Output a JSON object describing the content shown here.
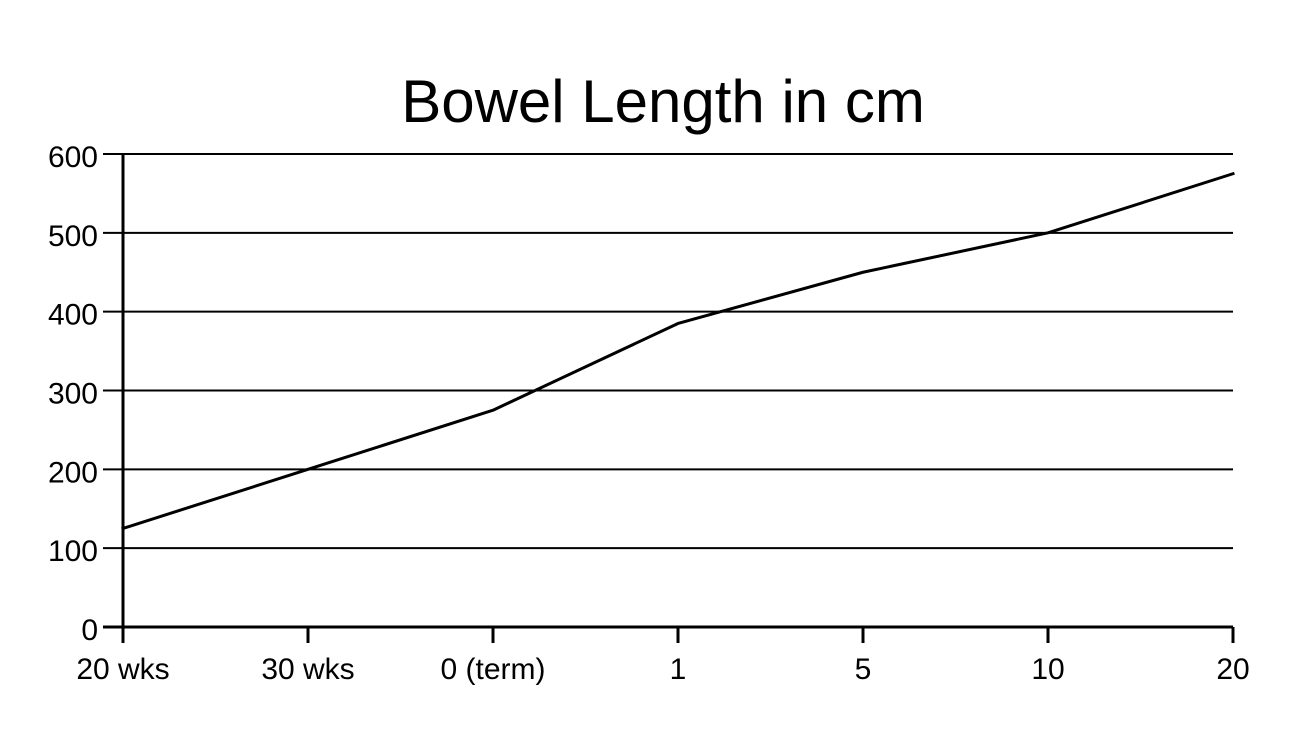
{
  "chart_data": {
    "type": "line",
    "title": "Bowel Length in cm",
    "categories": [
      "20 wks",
      "30 wks",
      "0 (term)",
      "1",
      "5",
      "10",
      "20"
    ],
    "values": [
      125,
      200,
      275,
      385,
      450,
      500,
      575
    ],
    "xlabel": "",
    "ylabel": "",
    "ylim": [
      0,
      600
    ],
    "yticks": [
      0,
      100,
      200,
      300,
      400,
      500,
      600
    ],
    "grid": "horizontal gridlines on",
    "legend": "none",
    "line_color": "#000000",
    "axis_color": "#000000",
    "text_color": "#000000",
    "background_color": "#ffffff"
  }
}
